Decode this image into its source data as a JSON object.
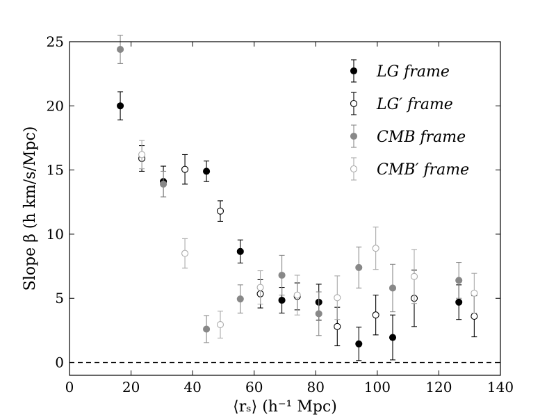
{
  "chart_data": {
    "type": "scatter",
    "title": "",
    "xlabel": "⟨rₛ⟩ (h⁻¹ Mpc)",
    "ylabel": "Slope β (h km/s/Mpc)",
    "xlim": [
      0,
      140
    ],
    "ylim": [
      -1,
      25
    ],
    "xticks": [
      "0",
      "20",
      "40",
      "60",
      "80",
      "100",
      "120",
      "140"
    ],
    "yticks": [
      "0",
      "5",
      "10",
      "15",
      "20",
      "25"
    ],
    "grid": false,
    "legend_position": "top-right",
    "reference_line": {
      "y": 0,
      "style": "dashed"
    },
    "series": [
      {
        "name": "LG frame",
        "color": "#000000",
        "filled": true,
        "points": [
          {
            "x": 16.5,
            "y": 20.0,
            "err": 1.1
          },
          {
            "x": 30.5,
            "y": 14.1,
            "err": 1.2
          },
          {
            "x": 44.5,
            "y": 14.9,
            "err": 0.8
          },
          {
            "x": 55.5,
            "y": 8.65,
            "err": 0.9
          },
          {
            "x": 69.0,
            "y": 4.85,
            "err": 1.0
          },
          {
            "x": 81.0,
            "y": 4.7,
            "err": 1.4
          },
          {
            "x": 94.0,
            "y": 1.45,
            "err": 1.3
          },
          {
            "x": 105.0,
            "y": 1.95,
            "err": 1.75
          },
          {
            "x": 126.5,
            "y": 4.7,
            "err": 1.35
          }
        ]
      },
      {
        "name": "LG′ frame",
        "color": "#000000",
        "filled": false,
        "points": [
          {
            "x": 23.5,
            "y": 15.9,
            "err": 1.0
          },
          {
            "x": 37.5,
            "y": 15.05,
            "err": 1.15
          },
          {
            "x": 49.0,
            "y": 11.8,
            "err": 0.8
          },
          {
            "x": 62.0,
            "y": 5.35,
            "err": 1.1
          },
          {
            "x": 74.0,
            "y": 5.15,
            "err": 1.05
          },
          {
            "x": 87.0,
            "y": 2.8,
            "err": 1.5
          },
          {
            "x": 99.5,
            "y": 3.7,
            "err": 1.55
          },
          {
            "x": 112.0,
            "y": 5.0,
            "err": 2.2
          },
          {
            "x": 131.5,
            "y": 3.6,
            "err": 1.6
          }
        ]
      },
      {
        "name": "CMB frame",
        "color": "#888888",
        "filled": true,
        "points": [
          {
            "x": 16.5,
            "y": 24.4,
            "err": 1.1
          },
          {
            "x": 30.5,
            "y": 13.9,
            "err": 1.0
          },
          {
            "x": 44.5,
            "y": 2.6,
            "err": 1.05
          },
          {
            "x": 55.5,
            "y": 4.95,
            "err": 1.1
          },
          {
            "x": 69.0,
            "y": 6.8,
            "err": 1.55
          },
          {
            "x": 81.0,
            "y": 3.8,
            "err": 1.7
          },
          {
            "x": 94.0,
            "y": 7.4,
            "err": 1.6
          },
          {
            "x": 105.0,
            "y": 5.8,
            "err": 1.85
          },
          {
            "x": 126.5,
            "y": 6.4,
            "err": 1.4
          }
        ]
      },
      {
        "name": "CMB′ frame",
        "color": "#aaaaaa",
        "filled": false,
        "points": [
          {
            "x": 23.5,
            "y": 16.2,
            "err": 1.1
          },
          {
            "x": 37.5,
            "y": 8.5,
            "err": 1.15
          },
          {
            "x": 49.0,
            "y": 2.95,
            "err": 1.05
          },
          {
            "x": 62.0,
            "y": 5.85,
            "err": 1.3
          },
          {
            "x": 74.0,
            "y": 5.25,
            "err": 1.55
          },
          {
            "x": 87.0,
            "y": 5.05,
            "err": 1.7
          },
          {
            "x": 99.5,
            "y": 8.9,
            "err": 1.65
          },
          {
            "x": 112.0,
            "y": 6.7,
            "err": 2.1
          },
          {
            "x": 131.5,
            "y": 5.4,
            "err": 1.55
          }
        ]
      }
    ]
  }
}
